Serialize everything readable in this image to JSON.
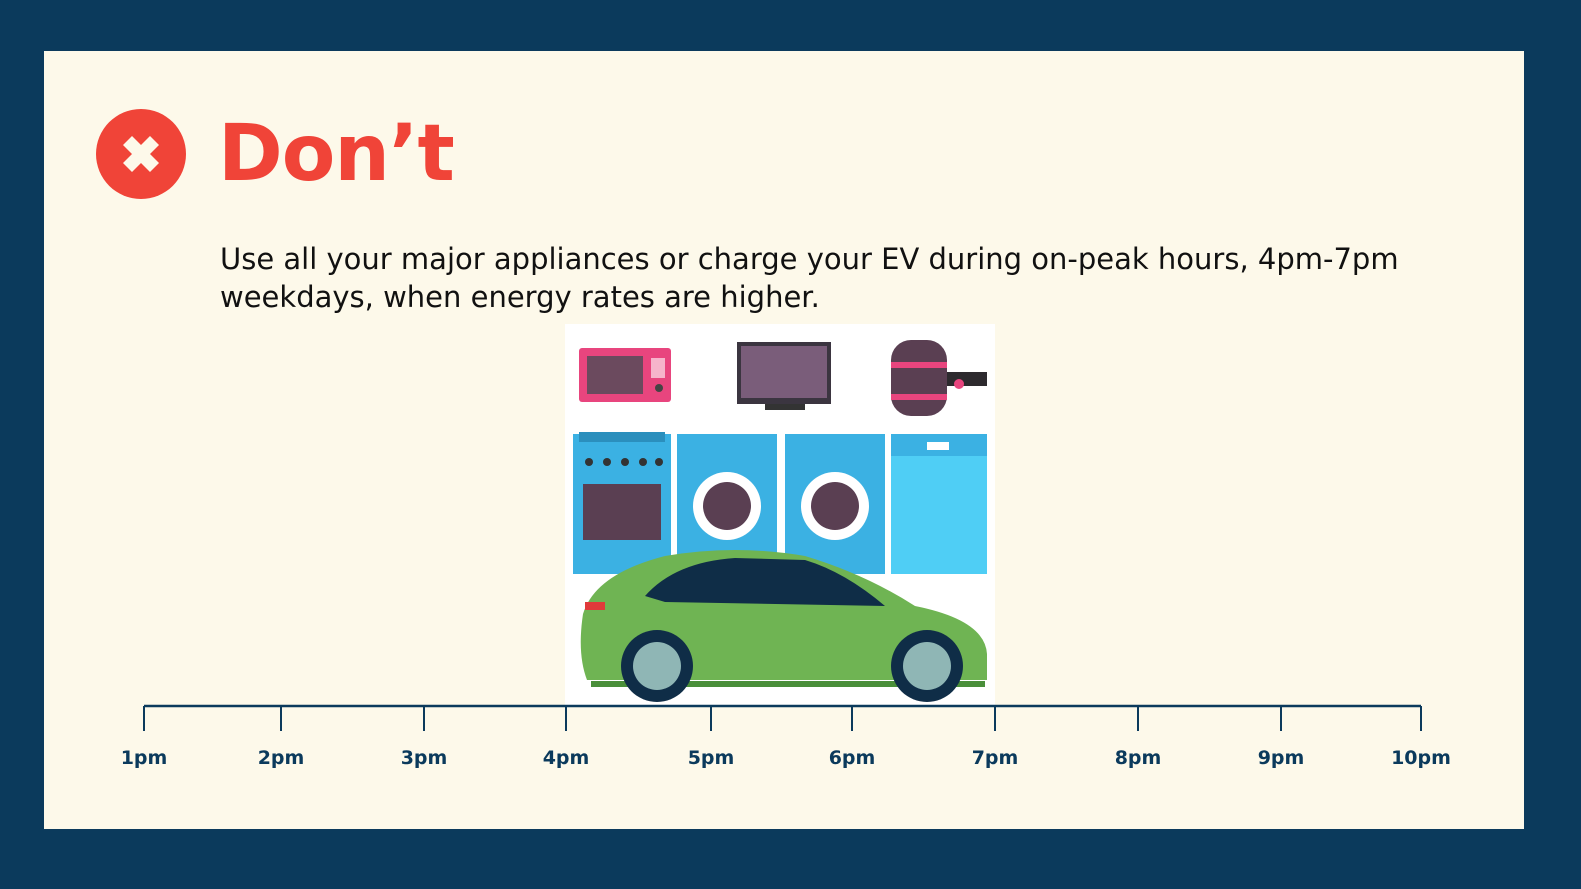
{
  "colors": {
    "frame": "#0b3a5c",
    "background": "#fdf9ea",
    "accent": "#f04438",
    "axis": "#0b3a5c"
  },
  "header": {
    "icon": "x-circle-icon",
    "title": "Don’t"
  },
  "description": "Use all your major appliances or charge your EV during on-peak hours, 4pm-7pm weekdays, when energy rates are higher.",
  "illustration": {
    "items": [
      "microwave",
      "television",
      "water-heater",
      "oven",
      "washer",
      "dryer",
      "dishwasher",
      "electric-car"
    ]
  },
  "timeline": {
    "labels": [
      "1pm",
      "2pm",
      "3pm",
      "4pm",
      "5pm",
      "6pm",
      "7pm",
      "8pm",
      "9pm",
      "10pm"
    ],
    "highlight_range": [
      "4pm",
      "7pm"
    ]
  }
}
